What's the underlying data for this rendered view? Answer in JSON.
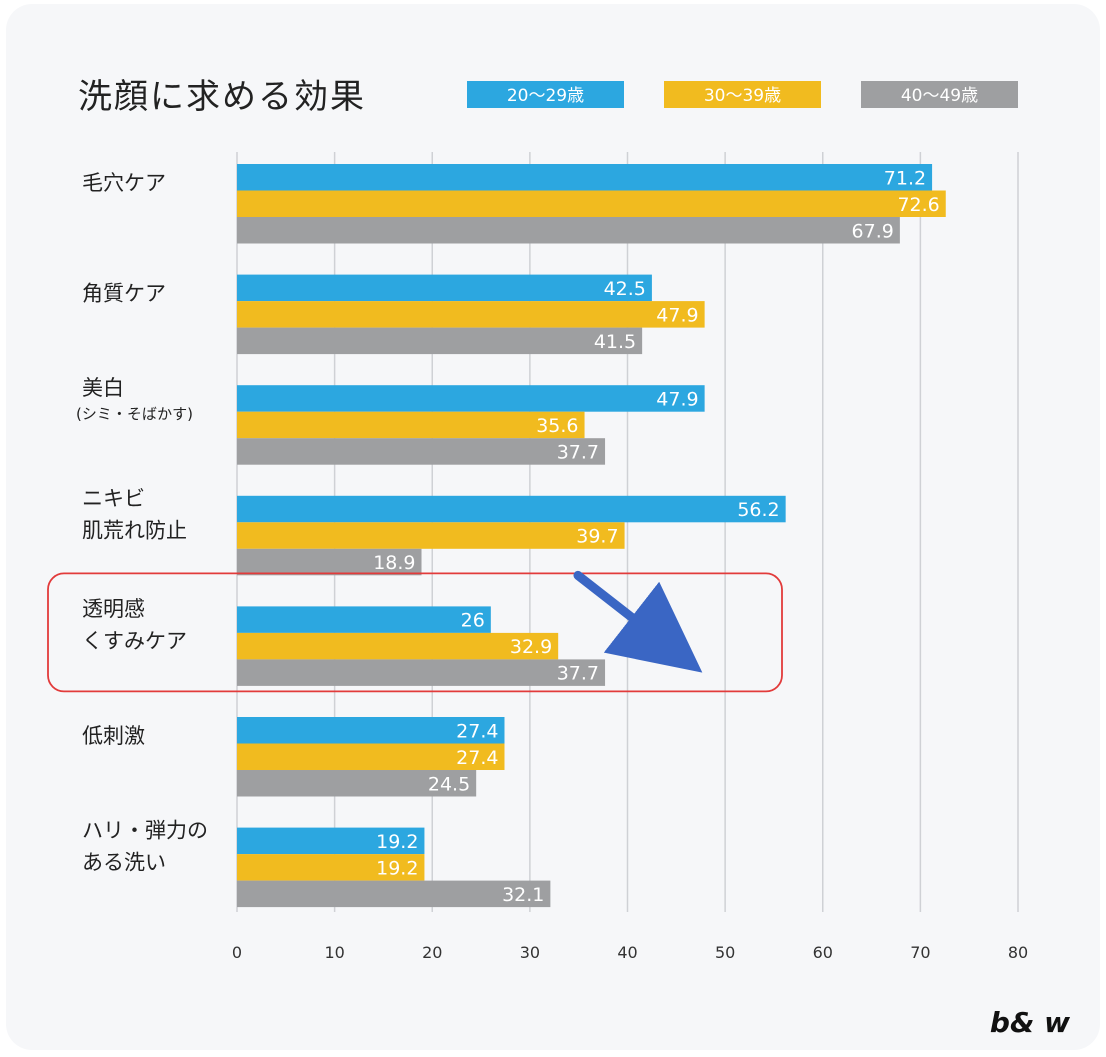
{
  "chart_data": {
    "type": "bar",
    "orientation": "horizontal",
    "title": "洗顔に求める効果",
    "legend_placement": "top-right",
    "grid": true,
    "xlim": [
      0,
      80
    ],
    "xticks": [
      0,
      10,
      20,
      30,
      40,
      50,
      60,
      70,
      80
    ],
    "categories": [
      [
        "毛穴ケア"
      ],
      [
        "角質ケア"
      ],
      [
        "美白",
        "(シミ・そばかす)"
      ],
      [
        "ニキビ",
        "肌荒れ防止"
      ],
      [
        "透明感",
        "くすみケア"
      ],
      [
        "低刺激"
      ],
      [
        "ハリ・弾力の",
        "ある洗い"
      ]
    ],
    "series": [
      {
        "name": "20〜29歳",
        "color": "#2ca7e0",
        "values": [
          71.2,
          42.5,
          47.9,
          56.2,
          26,
          27.4,
          19.2
        ]
      },
      {
        "name": "30〜39歳",
        "color": "#f1bb1f",
        "values": [
          72.6,
          47.9,
          35.6,
          39.7,
          32.9,
          27.4,
          19.2
        ]
      },
      {
        "name": "40〜49歳",
        "color": "#9e9fa1",
        "values": [
          67.9,
          41.5,
          37.7,
          18.9,
          37.7,
          24.5,
          32.1
        ]
      }
    ],
    "annotations": {
      "highlight_category_index": 4,
      "highlight_color": "#e23b3b",
      "arrow_color": "#3a66c4"
    }
  },
  "brand": {
    "logo_text": "b& w"
  }
}
